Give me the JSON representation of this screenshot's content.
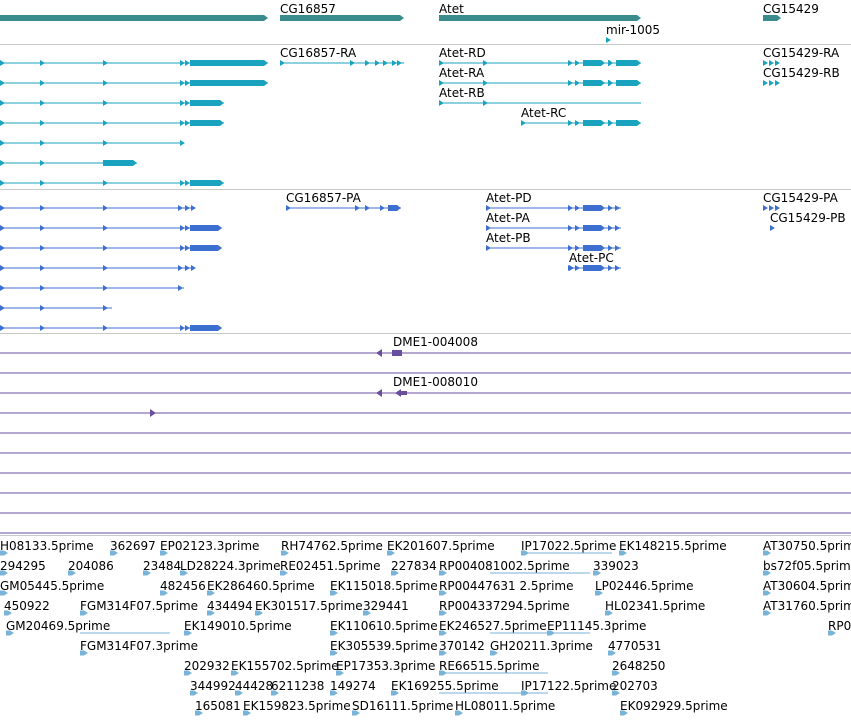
{
  "colors": {
    "gene": "#3a8c8c",
    "transcript": "#1aa3bf",
    "protein": "#3d6fd1",
    "cdna": "#6a4fa0",
    "est": "#7ab3d8",
    "separator": "#c9c9c9"
  },
  "tracks": {
    "genes": {
      "labels": [
        "CG16857",
        "Atet",
        "mir-1005",
        "CG15429"
      ]
    },
    "transcripts": {
      "labels": [
        "CG16857-RA",
        "Atet-RD",
        "Atet-RA",
        "Atet-RB",
        "Atet-RC",
        "CG15429-RA",
        "CG15429-RB"
      ]
    },
    "proteins": {
      "labels": [
        "CG16857-PA",
        "Atet-PD",
        "Atet-PA",
        "Atet-PB",
        "Atet-PC",
        "CG15429-PA",
        "CG15429-PB"
      ]
    },
    "cdna": {
      "labels": [
        "DME1-004008",
        "DME1-008010"
      ]
    },
    "est": {
      "labels": [
        "H08133.5prime",
        "362697",
        "EP02123.3prime",
        "RH74762.5prime",
        "EK201607.5prime",
        "IP17022.5prime",
        "EK148215.5prime",
        "AT30750.5prime",
        "294295",
        "204086",
        "23484",
        "LD28224.3prime",
        "RE02451.5prime",
        "227834",
        "RP004081002.5prime",
        "339023",
        "bs72f05.5prime",
        "GM05445.5prime",
        "482456",
        "EK286460.5prime",
        "EK115018.5prime",
        "RP00447631 2.5prime",
        "LP02446.5prime",
        "AT30604.5prime",
        "450922",
        "FGM314F07.5prime",
        "434494",
        "EK301517.5prime",
        "329441",
        "RP004337294.5prime",
        "HL02341.5prime",
        "AT31760.5prime",
        "GM20469.5prime",
        "EK149010.5prime",
        "EK110610.5prime",
        "EK246527.5prime",
        "EP11145.3prime",
        "RP0",
        "FGM314F07.3prime",
        "EK305539.5prime",
        "370142",
        "GH20211.3prime",
        "4770531",
        "202932",
        "EK155702.5prime",
        "EP17353.3prime",
        "RE66515.5prime",
        "2648250",
        "344992",
        "44428",
        "6211238",
        "149274",
        "EK169255.5prime",
        "IP17122.5prime",
        "202703",
        "165081",
        "EK159823.5prime",
        "SD16111.5prime",
        "HL08011.5prime",
        "EK092929.5prime"
      ]
    }
  }
}
